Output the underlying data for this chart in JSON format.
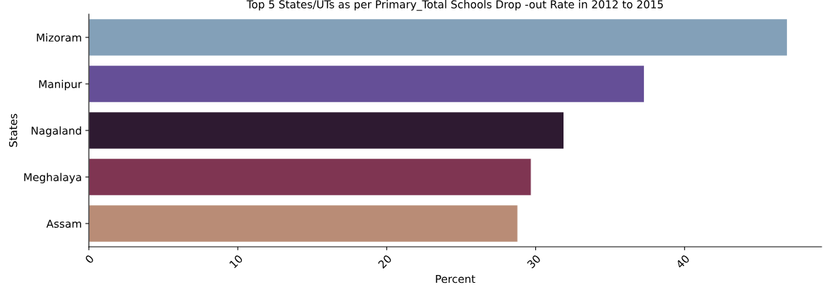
{
  "chart_data": {
    "type": "bar",
    "orientation": "horizontal",
    "title": "Top 5 States/UTs as per Primary_Total Schools Drop -out Rate in 2012 to 2015",
    "xlabel": "Percent",
    "ylabel": "States",
    "categories": [
      "Mizoram",
      "Manipur",
      "Nagaland",
      "Meghalaya",
      "Assam"
    ],
    "values": [
      46.9,
      37.3,
      31.9,
      29.7,
      28.8
    ],
    "colors": [
      "#83a0b8",
      "#654f97",
      "#2e1a31",
      "#7f3552",
      "#b98c76"
    ],
    "xlim": [
      0,
      49.2
    ],
    "xticks": [
      0,
      10,
      20,
      30,
      40
    ],
    "grid": false,
    "legend": false
  }
}
